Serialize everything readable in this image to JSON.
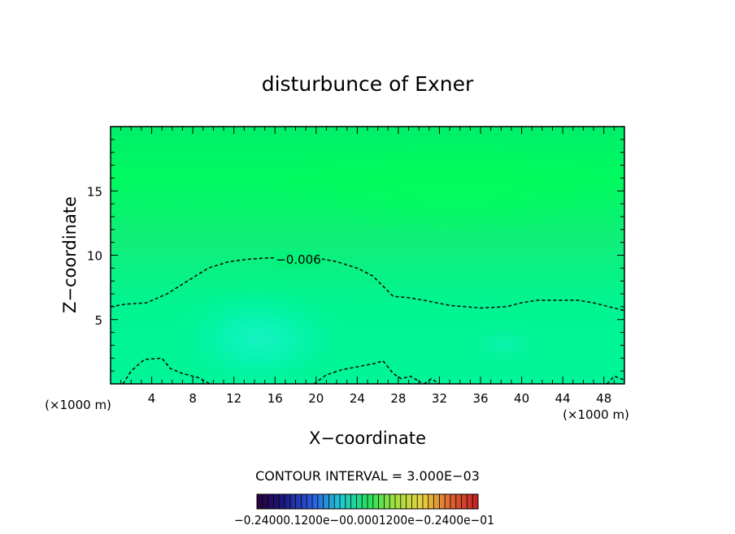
{
  "chart_data": {
    "type": "heatmap",
    "title": "disturbunce of Exner",
    "xlabel": "X−coordinate",
    "ylabel": "Z−coordinate",
    "x_unit_left": "(×1000 m)",
    "x_unit_right": "(×1000 m)",
    "xlim": [
      0,
      50
    ],
    "ylim": [
      0,
      20
    ],
    "x_ticks": [
      4,
      8,
      12,
      16,
      20,
      24,
      28,
      32,
      36,
      40,
      44,
      48
    ],
    "y_ticks": [
      5,
      10,
      15
    ],
    "contour_interval_text": "CONTOUR INTERVAL = 3.000E−03",
    "contour_label": "−0.006",
    "contour_line": [
      [
        0,
        6.0
      ],
      [
        1.5,
        6.2
      ],
      [
        3.5,
        6.3
      ],
      [
        5.5,
        7.0
      ],
      [
        7.5,
        8.0
      ],
      [
        9.5,
        9.0
      ],
      [
        11.5,
        9.5
      ],
      [
        13.5,
        9.7
      ],
      [
        15.5,
        9.8
      ],
      [
        17.5,
        9.8
      ],
      [
        20,
        9.8
      ],
      [
        22,
        9.5
      ],
      [
        24,
        9.0
      ],
      [
        25.5,
        8.4
      ],
      [
        26.5,
        7.6
      ],
      [
        27.5,
        6.8
      ],
      [
        29,
        6.7
      ],
      [
        30.5,
        6.5
      ],
      [
        33,
        6.1
      ],
      [
        36,
        5.9
      ],
      [
        38.5,
        6.0
      ],
      [
        40,
        6.3
      ],
      [
        41.5,
        6.5
      ],
      [
        43.5,
        6.5
      ],
      [
        45.5,
        6.5
      ],
      [
        47,
        6.3
      ],
      [
        48.5,
        6.0
      ],
      [
        50,
        5.7
      ]
    ],
    "contour_low_left": [
      [
        1.2,
        0
      ],
      [
        2,
        1.0
      ],
      [
        3.3,
        1.9
      ],
      [
        5,
        2.0
      ],
      [
        5.8,
        1.2
      ],
      [
        7,
        0.8
      ],
      [
        8.5,
        0.5
      ],
      [
        9.7,
        0
      ]
    ],
    "contour_low_mid": [
      [
        19.8,
        0
      ],
      [
        21,
        0.7
      ],
      [
        22.5,
        1.1
      ],
      [
        24.5,
        1.4
      ],
      [
        25.8,
        1.6
      ],
      [
        26.5,
        1.8
      ],
      [
        27.5,
        0.8
      ],
      [
        28.3,
        0.4
      ],
      [
        29.2,
        0.6
      ],
      [
        30.2,
        0.1
      ]
    ],
    "contour_low_mid2": [
      [
        30.5,
        0
      ],
      [
        31.2,
        0.4
      ],
      [
        32,
        0
      ]
    ],
    "contour_low_right": [
      [
        48.3,
        0
      ],
      [
        49,
        0.6
      ],
      [
        50,
        0.3
      ]
    ],
    "colorbar_labels": [
      "−0.2400",
      "−0.1200",
      "0.000",
      "0.1200",
      "0.2400"
    ],
    "colorbar_label_text": "−0.24000.1200e−00.0001200e−0.2400e−01",
    "colors": {
      "field_base": "#00ff6e",
      "field_top": "#00f066",
      "field_mid": "#00f090",
      "field_core": "#00f5b8",
      "field_core_center": "#10f0c8"
    }
  }
}
